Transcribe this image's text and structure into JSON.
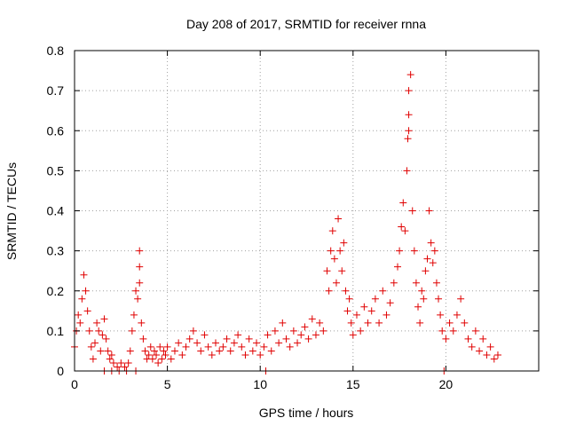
{
  "chart_data": {
    "type": "scatter",
    "title": "Day 208 of 2017, SRMTID for receiver rnna",
    "xlabel": "GPS time / hours",
    "ylabel": "SRMTID / TECUs",
    "xlim": [
      0,
      25
    ],
    "ylim": [
      0,
      0.8
    ],
    "xticks": [
      0,
      5,
      10,
      15,
      20
    ],
    "xtick_labels": [
      "0",
      "5",
      "10",
      "15",
      "20"
    ],
    "yticks": [
      0,
      0.1,
      0.2,
      0.3,
      0.4,
      0.5,
      0.6,
      0.7,
      0.8
    ],
    "ytick_labels": [
      "0",
      "0.1",
      "0.2",
      "0.3",
      "0.4",
      "0.5",
      "0.6",
      "0.7",
      "0.8"
    ],
    "grid": true,
    "marker": "plus",
    "series_color": "#e00000",
    "series": [
      {
        "name": "SRMTID",
        "x": [
          0.0,
          0.1,
          0.2,
          0.3,
          0.4,
          0.5,
          0.6,
          0.7,
          0.8,
          0.9,
          1.0,
          1.1,
          1.2,
          1.3,
          1.4,
          1.5,
          1.6,
          1.7,
          1.8,
          1.9,
          2.0,
          2.1,
          2.3,
          2.5,
          2.7,
          2.9,
          3.0,
          3.1,
          3.2,
          3.3,
          3.4,
          3.5,
          3.5,
          3.5,
          3.6,
          3.7,
          3.8,
          3.9,
          4.0,
          4.1,
          4.2,
          4.3,
          4.4,
          4.5,
          4.6,
          4.7,
          4.8,
          4.9,
          5.0,
          5.2,
          5.4,
          5.6,
          5.8,
          6.0,
          6.2,
          6.4,
          6.6,
          6.8,
          7.0,
          7.2,
          7.4,
          7.6,
          7.8,
          8.0,
          8.2,
          8.4,
          8.6,
          8.8,
          9.0,
          9.2,
          9.4,
          9.6,
          9.8,
          10.0,
          10.2,
          10.4,
          10.6,
          10.8,
          11.0,
          11.2,
          11.4,
          11.6,
          11.8,
          12.0,
          12.2,
          12.4,
          12.6,
          12.8,
          13.0,
          13.2,
          13.4,
          13.6,
          13.7,
          13.8,
          13.9,
          14.0,
          14.1,
          14.2,
          14.3,
          14.4,
          14.5,
          14.6,
          14.7,
          14.8,
          14.9,
          15.0,
          15.2,
          15.4,
          15.6,
          15.8,
          16.0,
          16.2,
          16.4,
          16.6,
          16.8,
          17.0,
          17.2,
          17.4,
          17.5,
          17.6,
          17.7,
          17.8,
          17.9,
          17.95,
          18.0,
          18.0,
          18.0,
          18.1,
          18.2,
          18.3,
          18.4,
          18.5,
          18.6,
          18.7,
          18.8,
          18.9,
          19.0,
          19.1,
          19.2,
          19.3,
          19.4,
          19.5,
          19.6,
          19.7,
          19.8,
          20.0,
          20.2,
          20.4,
          20.6,
          20.8,
          21.0,
          21.2,
          21.4,
          21.6,
          21.8,
          22.0,
          22.2,
          22.4,
          22.6,
          22.8,
          1.6,
          2.0,
          2.4,
          2.8,
          3.3,
          10.3,
          19.9
        ],
        "y": [
          0.06,
          0.1,
          0.14,
          0.12,
          0.18,
          0.24,
          0.2,
          0.15,
          0.1,
          0.06,
          0.03,
          0.07,
          0.12,
          0.1,
          0.05,
          0.09,
          0.13,
          0.08,
          0.05,
          0.03,
          0.04,
          0.02,
          0.01,
          0.02,
          0.01,
          0.02,
          0.05,
          0.1,
          0.14,
          0.2,
          0.18,
          0.22,
          0.26,
          0.3,
          0.12,
          0.08,
          0.05,
          0.03,
          0.04,
          0.06,
          0.03,
          0.05,
          0.04,
          0.02,
          0.06,
          0.03,
          0.05,
          0.04,
          0.06,
          0.03,
          0.05,
          0.07,
          0.04,
          0.06,
          0.08,
          0.1,
          0.07,
          0.05,
          0.09,
          0.06,
          0.04,
          0.07,
          0.05,
          0.06,
          0.08,
          0.05,
          0.07,
          0.09,
          0.06,
          0.04,
          0.08,
          0.05,
          0.07,
          0.04,
          0.06,
          0.09,
          0.05,
          0.1,
          0.07,
          0.12,
          0.08,
          0.06,
          0.1,
          0.07,
          0.09,
          0.11,
          0.08,
          0.13,
          0.09,
          0.12,
          0.1,
          0.25,
          0.2,
          0.3,
          0.35,
          0.28,
          0.22,
          0.38,
          0.3,
          0.25,
          0.32,
          0.2,
          0.15,
          0.18,
          0.12,
          0.09,
          0.14,
          0.1,
          0.16,
          0.12,
          0.15,
          0.18,
          0.12,
          0.2,
          0.14,
          0.17,
          0.22,
          0.26,
          0.3,
          0.36,
          0.42,
          0.35,
          0.5,
          0.58,
          0.6,
          0.64,
          0.7,
          0.74,
          0.4,
          0.3,
          0.22,
          0.16,
          0.12,
          0.2,
          0.18,
          0.25,
          0.28,
          0.4,
          0.32,
          0.27,
          0.3,
          0.22,
          0.18,
          0.14,
          0.1,
          0.08,
          0.12,
          0.1,
          0.14,
          0.18,
          0.12,
          0.08,
          0.06,
          0.1,
          0.05,
          0.08,
          0.04,
          0.06,
          0.03,
          0.04,
          0.0,
          0.0,
          0.0,
          0.0,
          0.0,
          0.0,
          0.0
        ]
      }
    ]
  }
}
